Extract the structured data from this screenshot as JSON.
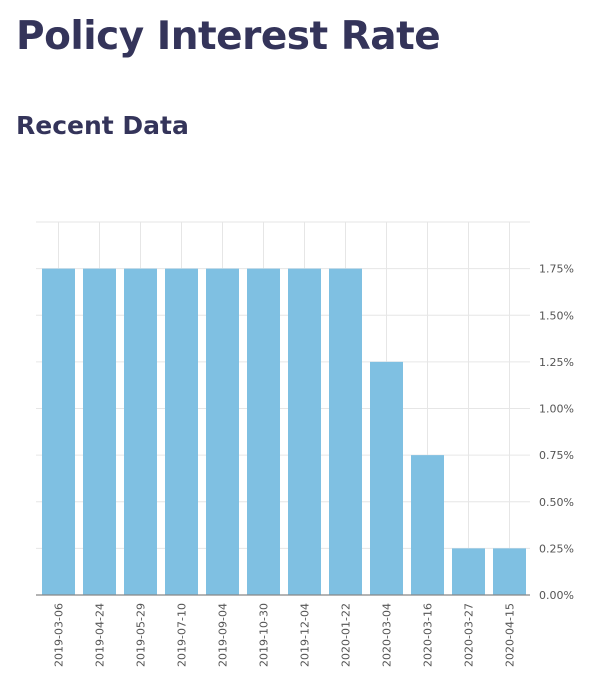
{
  "page": {
    "title": "Policy Interest Rate",
    "subtitle": "Recent Data"
  },
  "chart_data": {
    "type": "bar",
    "title": "",
    "xlabel": "",
    "ylabel": "",
    "categories": [
      "2019-03-06",
      "2019-04-24",
      "2019-05-29",
      "2019-07-10",
      "2019-09-04",
      "2019-10-30",
      "2019-12-04",
      "2020-01-22",
      "2020-03-04",
      "2020-03-16",
      "2020-03-27",
      "2020-04-15"
    ],
    "values": [
      1.75,
      1.75,
      1.75,
      1.75,
      1.75,
      1.75,
      1.75,
      1.75,
      1.25,
      0.75,
      0.25,
      0.25
    ],
    "ylim": [
      0,
      2.0
    ],
    "yticks": [
      0,
      0.25,
      0.5,
      0.75,
      1.0,
      1.25,
      1.5,
      1.75
    ],
    "ytick_labels": [
      "0.00%",
      "0.25%",
      "0.50%",
      "0.75%",
      "1.00%",
      "1.25%",
      "1.50%",
      "1.75%"
    ],
    "y_axis_side": "right",
    "grid": true,
    "bar_color": "#7fc0e2"
  }
}
